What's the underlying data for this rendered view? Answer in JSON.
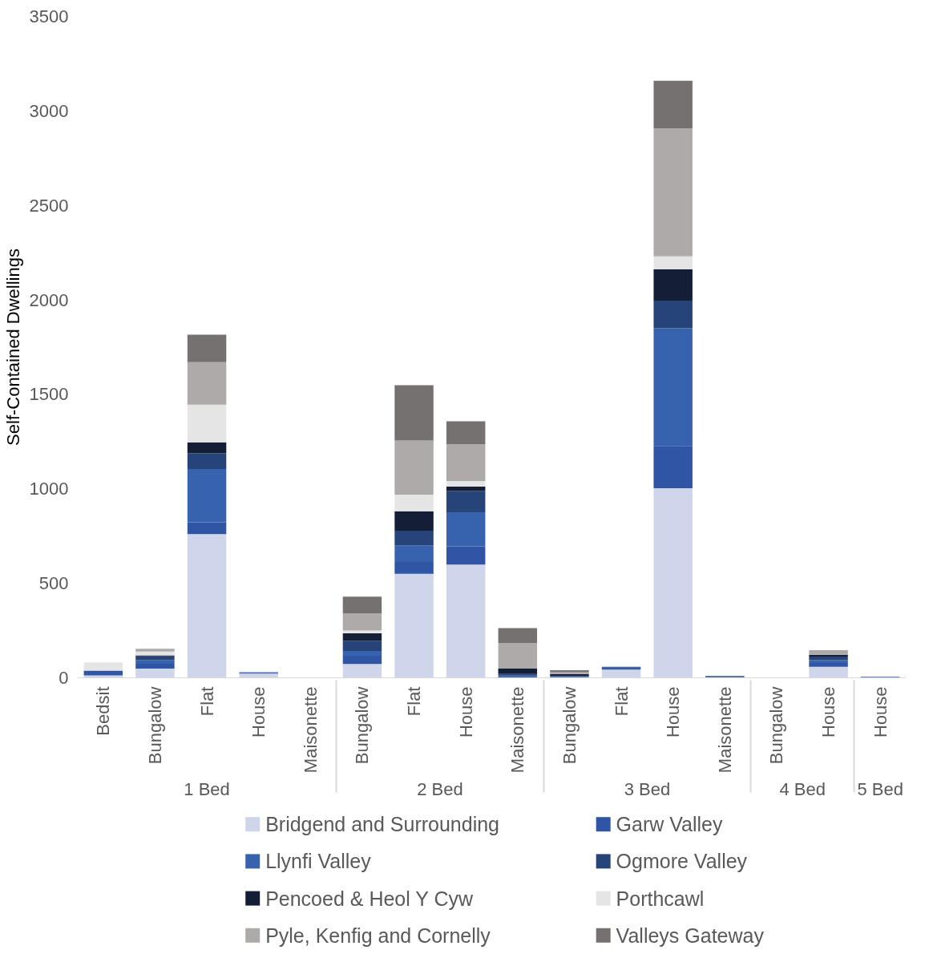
{
  "chart_data": {
    "type": "bar",
    "stacked": true,
    "ylabel": "Self-Contained Dwellings",
    "categories": [
      "Bedsit",
      "Bungalow",
      "Flat",
      "House",
      "Maisonette",
      "Bungalow",
      "Flat",
      "House",
      "Maisonette",
      "Bungalow",
      "Flat",
      "House",
      "Maisonette",
      "Bungalow",
      "House",
      "House"
    ],
    "annotations": [
      "1 Bed",
      "2 Bed",
      "3 Bed",
      "4 Bed",
      "5 Bed"
    ],
    "ylim": [
      0,
      3500
    ],
    "yticks": [
      0,
      500,
      1000,
      1500,
      2000,
      2500,
      3000,
      3500
    ],
    "grid": false,
    "legend": "bottom",
    "series": [
      {
        "name": "Bridgend and Surrounding",
        "color": "#cfd5ea",
        "values": [
          13,
          49,
          760,
          22,
          0,
          73,
          550,
          599,
          null,
          null,
          44,
          1003,
          null,
          0,
          58,
          null
        ]
      },
      {
        "name": "Garw Valley",
        "color": "#2f55a4",
        "values": [
          25,
          25,
          63,
          4,
          0,
          44,
          63,
          97,
          10,
          5,
          5,
          224,
          0,
          0,
          20,
          5
        ]
      },
      {
        "name": "Llynfi Valley",
        "color": "#3662ae",
        "values": [
          0,
          20,
          282,
          4,
          0,
          25,
          88,
          180,
          5,
          5,
          5,
          623,
          5,
          0,
          15,
          0
        ]
      },
      {
        "name": "Ogmore Valley",
        "color": "#264478",
        "values": [
          0,
          20,
          83,
          0,
          0,
          54,
          78,
          112,
          5,
          0,
          4,
          146,
          5,
          0,
          19,
          0
        ]
      },
      {
        "name": "Pencoed & Heol Y Cyw",
        "color": "#141e36",
        "values": [
          0,
          5,
          58,
          0,
          0,
          39,
          102,
          24,
          29,
          10,
          0,
          166,
          0,
          0,
          10,
          0
        ]
      },
      {
        "name": "Porthcawl",
        "color": "#e5e5e5",
        "values": [
          44,
          20,
          200,
          0,
          0,
          15,
          88,
          29,
          0,
          0,
          0,
          68,
          0,
          0,
          0,
          0
        ]
      },
      {
        "name": "Pyle, Kenfig and Cornelly",
        "color": "#aeaaaa",
        "values": [
          0,
          15,
          224,
          0,
          0,
          92,
          287,
          195,
          136,
          10,
          0,
          677,
          0,
          0,
          24,
          0
        ]
      },
      {
        "name": "Valleys Gateway",
        "color": "#767171",
        "values": [
          0,
          0,
          146,
          0,
          0,
          88,
          292,
          122,
          78,
          10,
          0,
          253,
          0,
          0,
          0,
          0
        ]
      }
    ]
  }
}
